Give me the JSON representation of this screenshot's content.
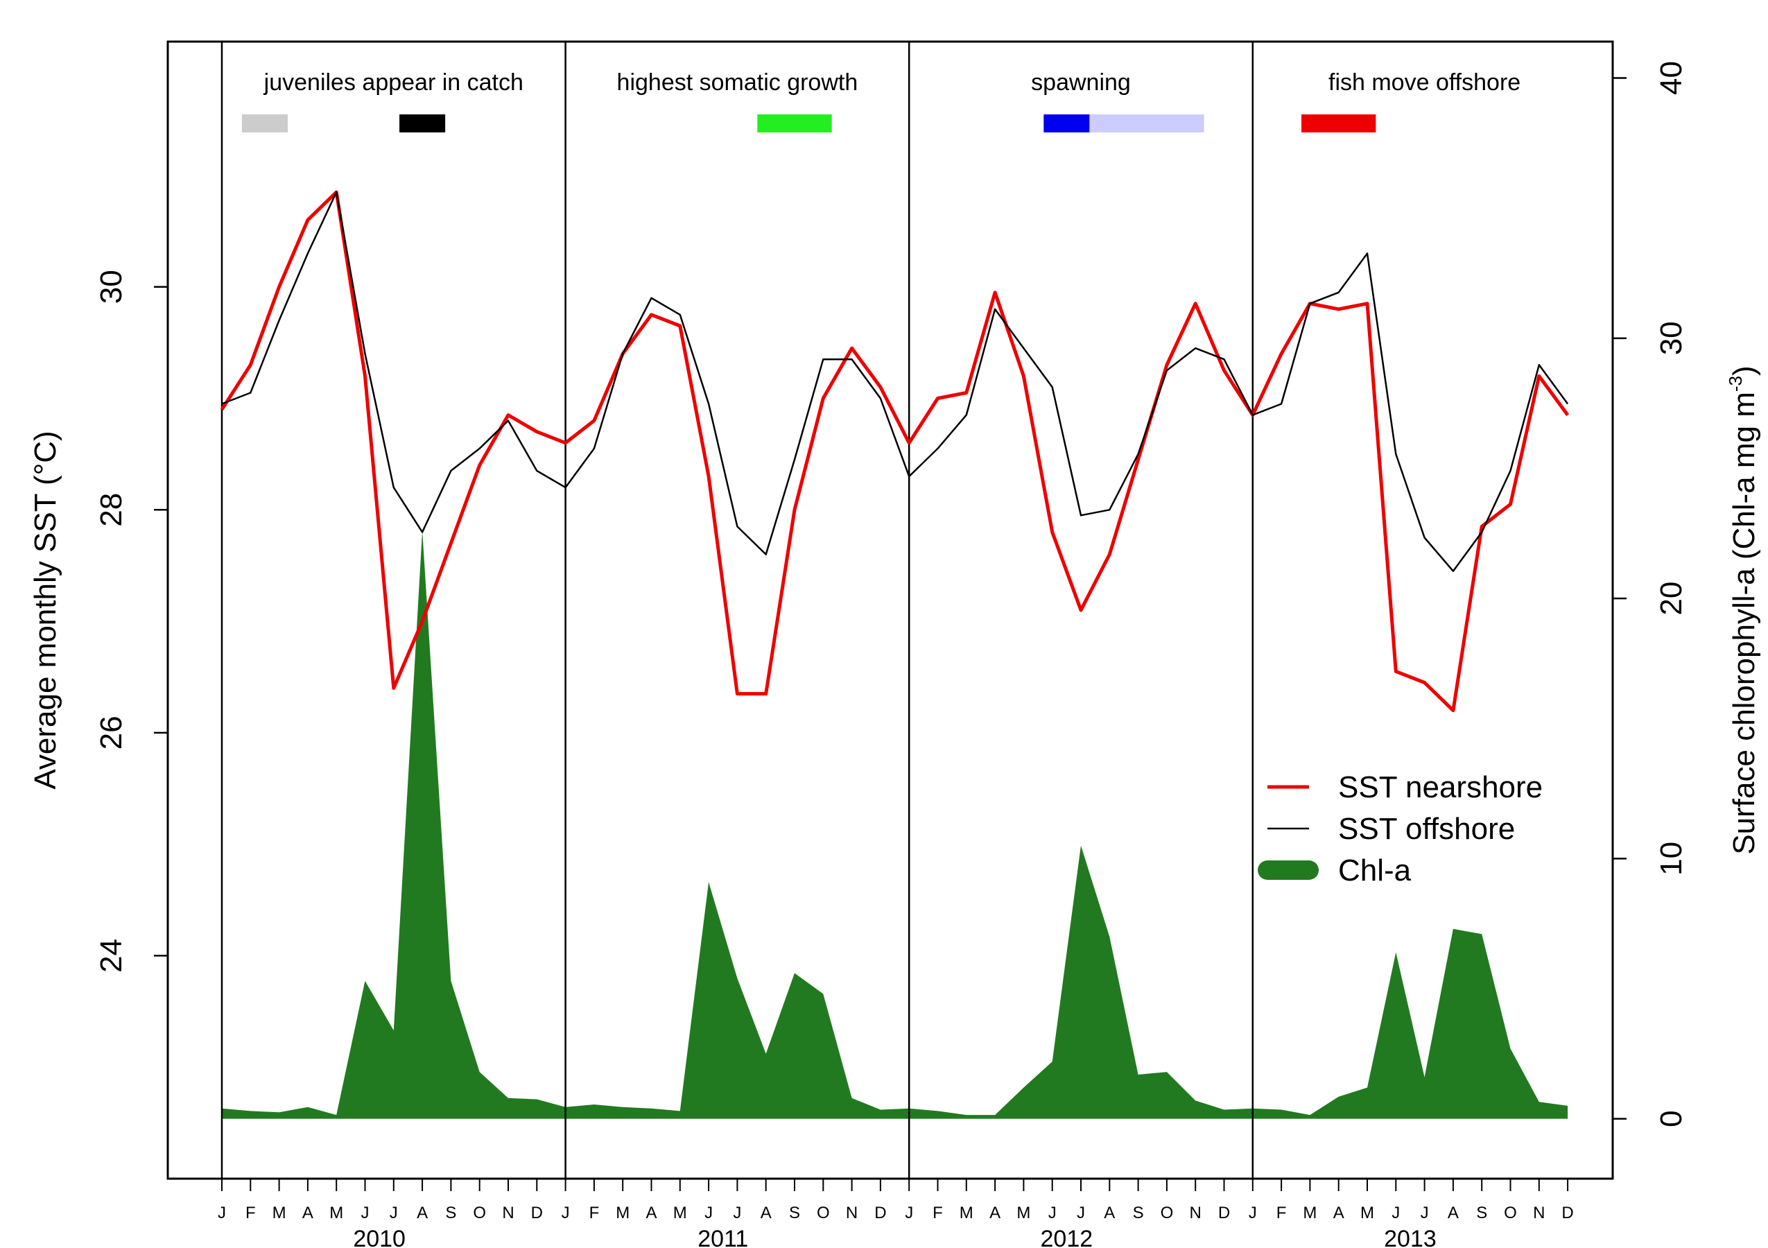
{
  "chart_data": {
    "type": "line",
    "title": "",
    "ylabel": "Average monthly SST (°C)",
    "y2label_main": "Surface chlorophyll-a (Chl-a mg m",
    "y2label_sup": "-3",
    "y2label_end": ")",
    "ylim": [
      22.0,
      32.2
    ],
    "y2lim": [
      -2.3,
      41.4
    ],
    "yticks": [
      "24",
      "26",
      "28",
      "30"
    ],
    "y2ticks": [
      "0",
      "10",
      "20",
      "30",
      "40"
    ],
    "month_labels": [
      "J",
      "F",
      "M",
      "A",
      "M",
      "J",
      "J",
      "A",
      "S",
      "O",
      "N",
      "D"
    ],
    "years": [
      "2010",
      "2011",
      "2012",
      "2013"
    ],
    "phases": [
      {
        "label": "juveniles appear in catch",
        "bars": [
          {
            "start": 0.7,
            "end": 2.3,
            "color": "#cccccc"
          },
          {
            "start": 6.2,
            "end": 7.8,
            "color": "#000000"
          }
        ]
      },
      {
        "label": "highest somatic growth",
        "bars": [
          {
            "start": 18.7,
            "end": 21.3,
            "color": "#22ee22"
          }
        ]
      },
      {
        "label": "spawning",
        "bars": [
          {
            "start": 28.7,
            "end": 30.3,
            "color": "#0000ee"
          },
          {
            "start": 30.3,
            "end": 34.3,
            "color": "#ccccff"
          }
        ]
      },
      {
        "label": "fish move offshore",
        "bars": [
          {
            "start": 37.7,
            "end": 40.3,
            "color": "#ee0000"
          }
        ]
      }
    ],
    "series": [
      {
        "name": "SST nearshore",
        "color": "#ee0000",
        "axis": "left",
        "values": [
          28.9,
          29.3,
          30.0,
          30.6,
          30.85,
          29.2,
          26.4,
          27.0,
          27.7,
          28.4,
          28.85,
          28.7,
          28.6,
          28.8,
          29.4,
          29.75,
          29.65,
          28.3,
          26.35,
          26.35,
          28.0,
          29.0,
          29.45,
          29.1,
          28.6,
          29.0,
          29.05,
          29.95,
          29.2,
          27.8,
          27.1,
          27.6,
          28.45,
          29.3,
          29.85,
          29.25,
          28.85,
          29.4,
          29.85,
          29.8,
          29.85,
          26.55,
          26.45,
          26.2,
          27.85,
          28.05,
          29.2,
          28.85
        ]
      },
      {
        "name": "SST offshore",
        "color": "#000000",
        "axis": "left",
        "values": [
          28.95,
          29.05,
          29.7,
          30.3,
          30.85,
          29.4,
          28.2,
          27.8,
          28.35,
          28.55,
          28.8,
          28.35,
          28.2,
          28.55,
          29.4,
          29.9,
          29.75,
          28.95,
          27.85,
          27.6,
          28.45,
          29.35,
          29.35,
          29.0,
          28.3,
          28.55,
          28.85,
          29.8,
          29.45,
          29.1,
          27.95,
          28.0,
          28.5,
          29.25,
          29.45,
          29.35,
          28.85,
          28.95,
          29.85,
          29.95,
          30.3,
          28.5,
          27.75,
          27.45,
          27.8,
          28.35,
          29.3,
          28.95
        ]
      },
      {
        "name": "Chl-a",
        "color": "#217a1f",
        "axis": "right",
        "values": [
          0.4,
          0.3,
          0.25,
          0.45,
          0.15,
          5.3,
          3.4,
          22.6,
          5.3,
          1.8,
          0.8,
          0.75,
          0.45,
          0.55,
          0.45,
          0.4,
          0.3,
          9.1,
          5.4,
          2.5,
          5.6,
          4.8,
          0.8,
          0.35,
          0.4,
          0.3,
          0.15,
          0.15,
          1.2,
          2.2,
          10.5,
          7.0,
          1.7,
          1.8,
          0.7,
          0.35,
          0.4,
          0.35,
          0.15,
          0.85,
          1.2,
          6.4,
          1.6,
          7.3,
          7.1,
          2.7,
          0.65,
          0.5
        ]
      }
    ],
    "legend": {
      "position": "bottom-right",
      "entries": [
        "SST nearshore",
        "SST offshore",
        "Chl-a"
      ]
    },
    "grid": false
  }
}
